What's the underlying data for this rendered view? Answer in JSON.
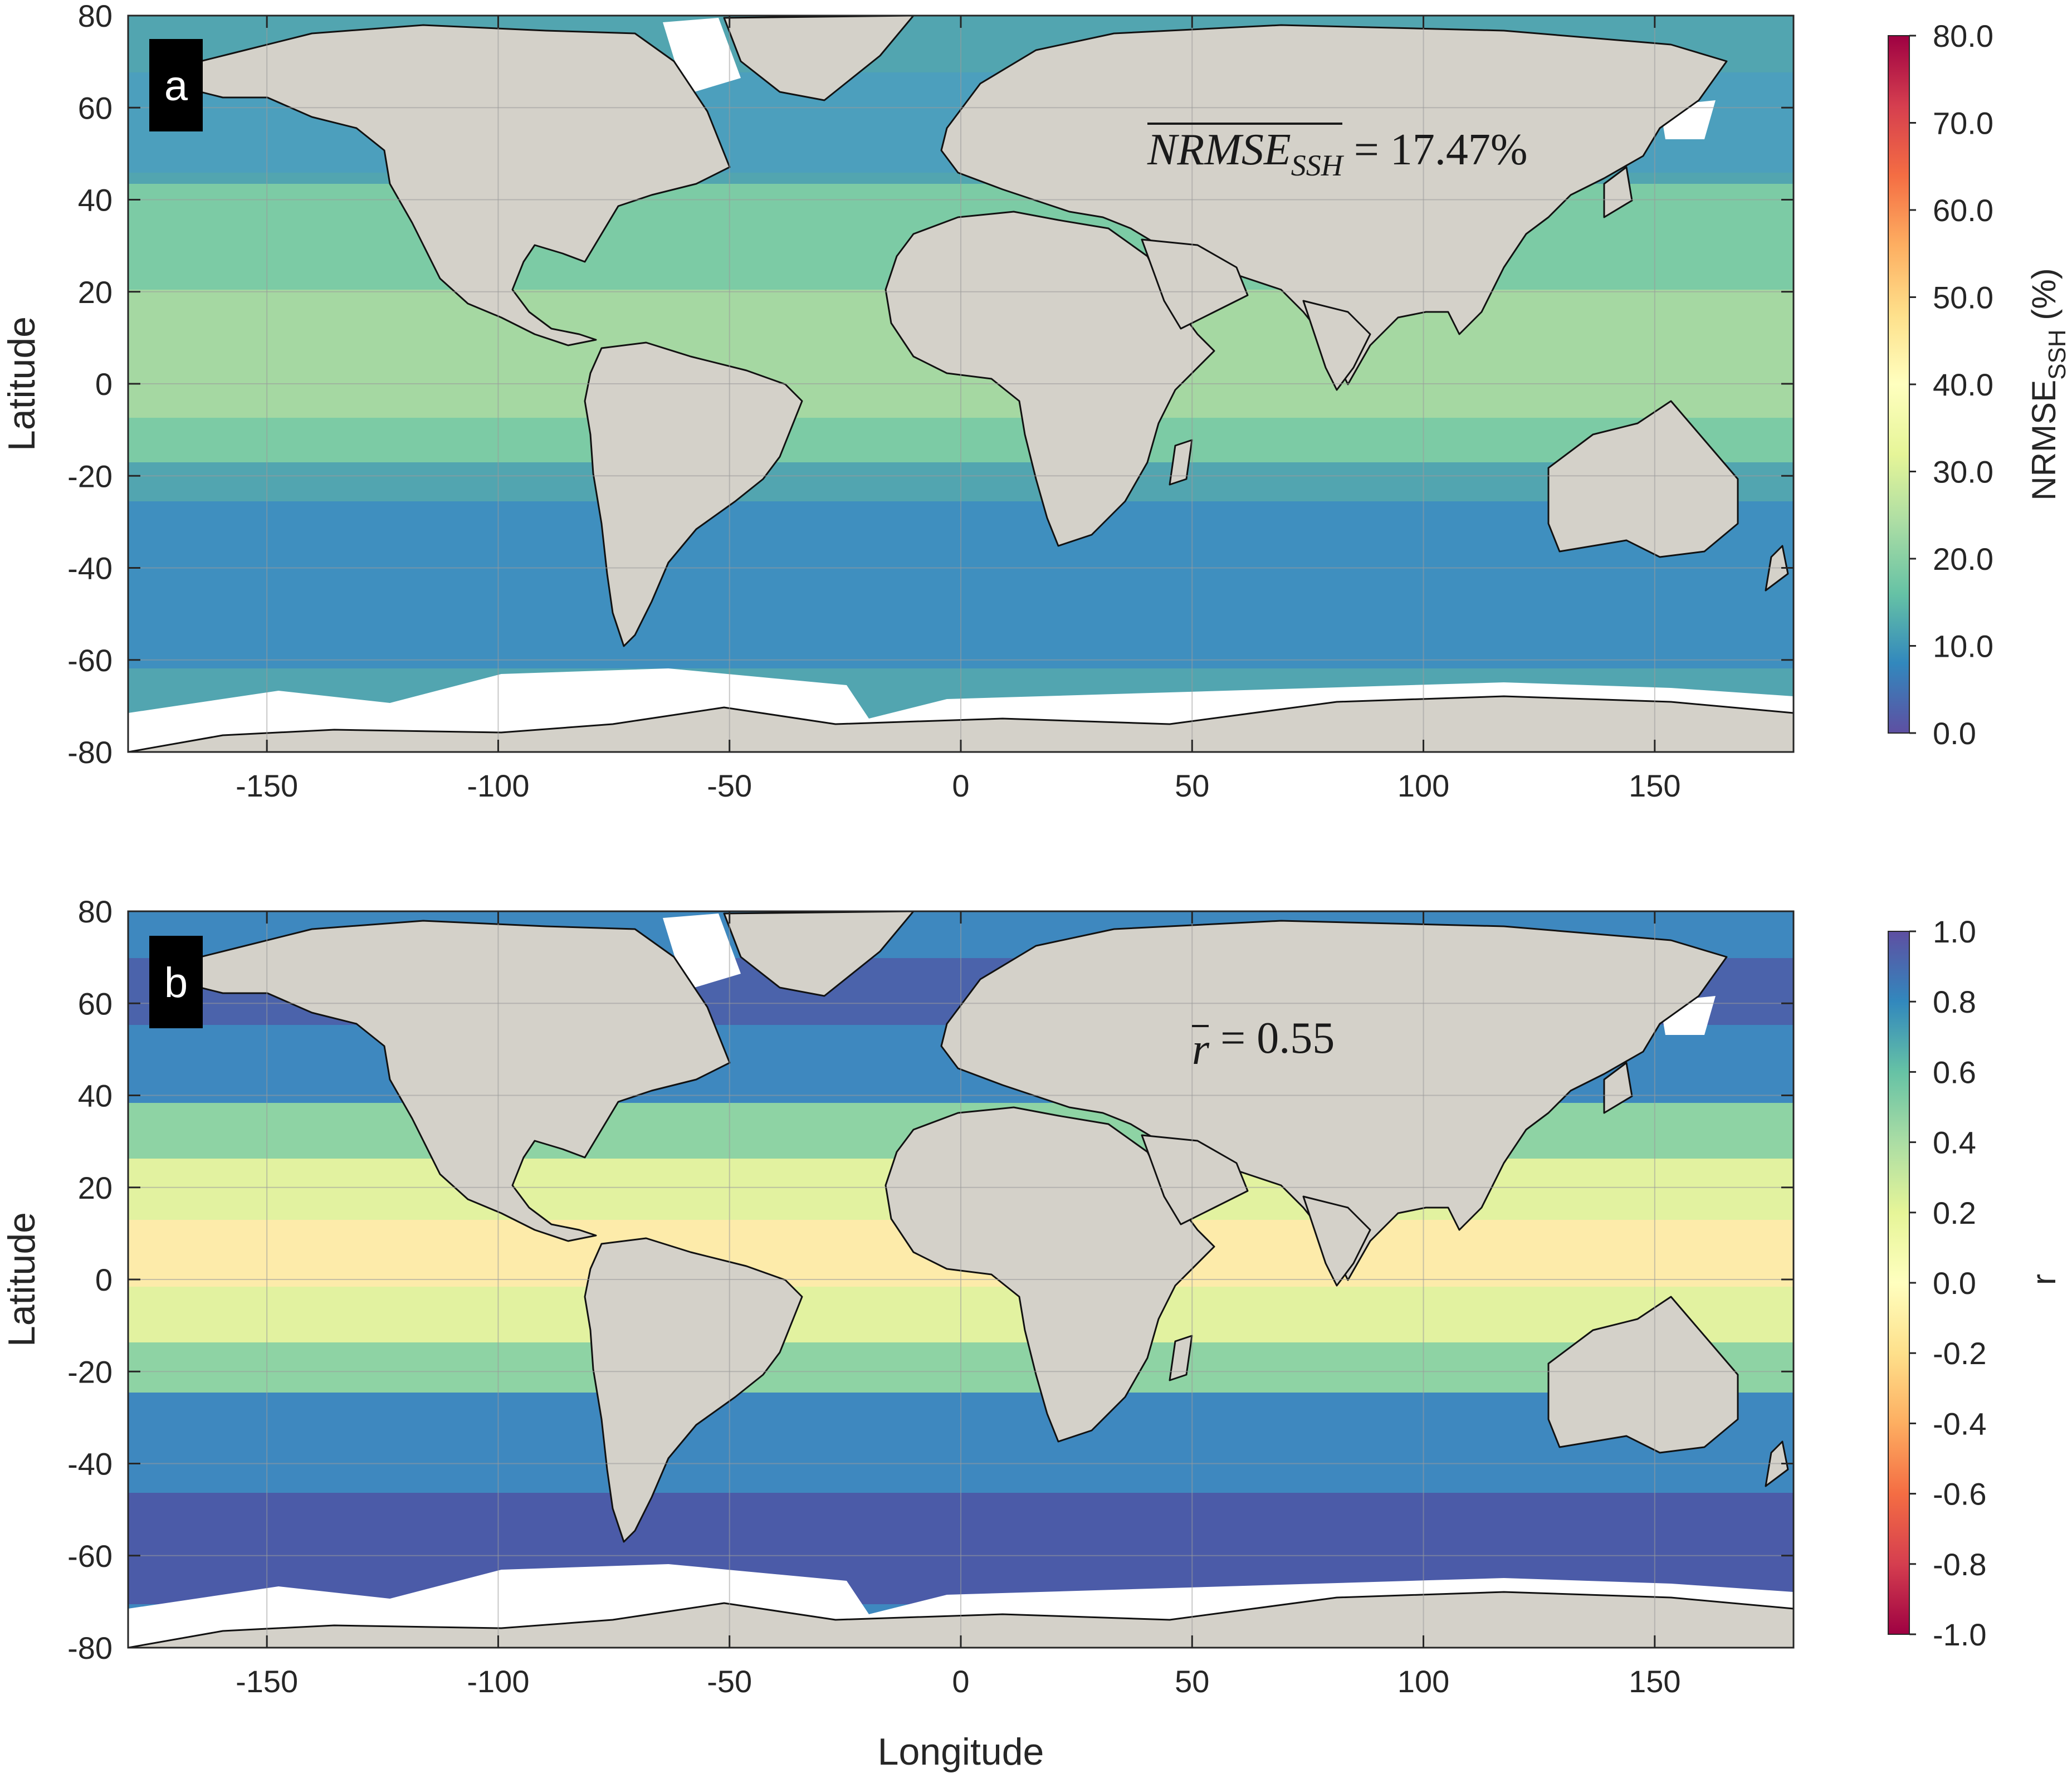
{
  "panels": [
    {
      "id": "a",
      "badge": "a",
      "ylabel": "Latitude",
      "xlabel": "",
      "annotation": {
        "symbol": "NRMSE",
        "subscript": "SSH",
        "rest": " = 17.47%",
        "overline": true
      },
      "colorbar": {
        "label_main": "NRMSE",
        "label_sub": "SSH",
        "label_unit": " (%)",
        "ticks": [
          "0.0",
          "10.0",
          "20.0",
          "30.0",
          "40.0",
          "50.0",
          "60.0",
          "70.0",
          "80.0"
        ],
        "range": [
          0,
          80
        ]
      }
    },
    {
      "id": "b",
      "badge": "b",
      "ylabel": "Latitude",
      "xlabel": "Longitude",
      "annotation": {
        "symbol": "r",
        "subscript": "",
        "rest": " = 0.55",
        "overline": true
      },
      "colorbar": {
        "label_main": "r",
        "label_sub": "",
        "label_unit": "",
        "ticks": [
          "-1.0",
          "-0.8",
          "-0.6",
          "-0.4",
          "-0.2",
          "0.0",
          "0.2",
          "0.4",
          "0.6",
          "0.8",
          "1.0"
        ],
        "range": [
          -1,
          1
        ]
      }
    }
  ],
  "axes": {
    "xticks": [
      "-150",
      "-100",
      "-50",
      "0",
      "50",
      "100",
      "150"
    ],
    "xvalues": [
      -150,
      -100,
      -50,
      0,
      50,
      100,
      150
    ],
    "yticks": [
      "80",
      "60",
      "40",
      "20",
      "0",
      "-20",
      "-40",
      "-60",
      "-80"
    ],
    "yvalues": [
      80,
      60,
      40,
      20,
      0,
      -20,
      -40,
      -60,
      -80
    ],
    "xlim": [
      -180,
      180
    ],
    "ylim": [
      -80,
      80
    ],
    "grid": true
  },
  "colors": {
    "land": "#d4d1c9",
    "ice": "#ffffff",
    "coast": "#111111",
    "spectral": [
      "#5e4fa2",
      "#3288bd",
      "#66c2a5",
      "#abdda4",
      "#e6f598",
      "#ffffbf",
      "#fee08b",
      "#fdae61",
      "#f46d43",
      "#d53e4f",
      "#9e0142"
    ]
  }
}
